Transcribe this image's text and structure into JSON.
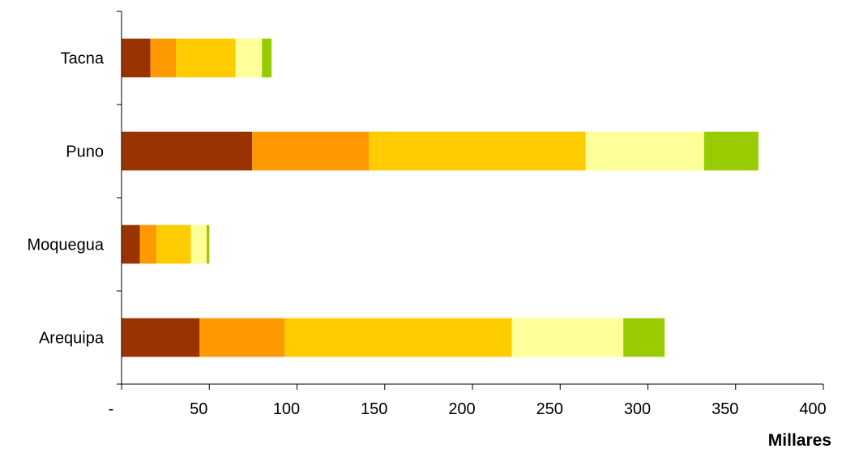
{
  "chart_data": {
    "type": "bar",
    "orientation": "horizontal",
    "stacked": true,
    "categories": [
      "Arequipa",
      "Moquegua",
      "Puno",
      "Tacna"
    ],
    "series": [
      {
        "color": "#993300",
        "values": [
          44.5,
          10.5,
          74.5,
          16.5
        ]
      },
      {
        "color": "#FF9900",
        "values": [
          48.5,
          9.5,
          66.5,
          14.5
        ]
      },
      {
        "color": "#FFCC00",
        "values": [
          129.5,
          19.5,
          123.5,
          34.0
        ]
      },
      {
        "color": "#FFFF99",
        "values": [
          63.5,
          9.0,
          67.5,
          15.0
        ]
      },
      {
        "color": "#99CC00",
        "values": [
          23.5,
          1.5,
          31.0,
          5.5
        ]
      }
    ],
    "x_ticks": [
      {
        "value": 0,
        "label": "-"
      },
      {
        "value": 50,
        "label": "50"
      },
      {
        "value": 100,
        "label": "100"
      },
      {
        "value": 150,
        "label": "150"
      },
      {
        "value": 200,
        "label": "200"
      },
      {
        "value": 250,
        "label": "250"
      },
      {
        "value": 300,
        "label": "300"
      },
      {
        "value": 350,
        "label": "350"
      },
      {
        "value": 400,
        "label": "400"
      }
    ],
    "xlim": [
      0,
      400
    ],
    "xlabel": "Millares",
    "ylabel": "",
    "title": "",
    "grid": false,
    "legend": "none"
  }
}
